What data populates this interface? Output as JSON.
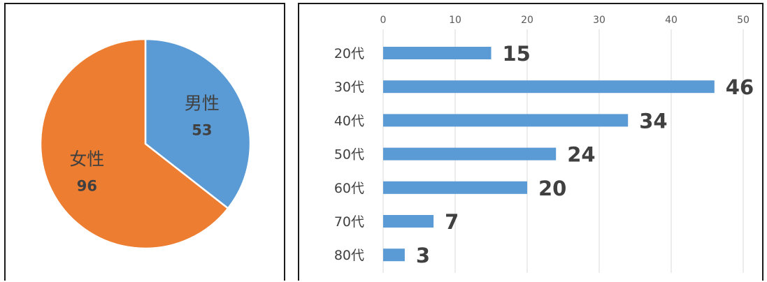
{
  "chart_data": [
    {
      "type": "pie",
      "labels": [
        "男性",
        "女性"
      ],
      "values": [
        53,
        96
      ],
      "colors": [
        "#5b9bd5",
        "#ed7d31"
      ],
      "start_angle_deg": 0,
      "direction": "clockwise",
      "legend": "none"
    },
    {
      "type": "bar",
      "orientation": "horizontal",
      "categories": [
        "20代",
        "30代",
        "40代",
        "50代",
        "60代",
        "70代",
        "80代"
      ],
      "values": [
        15,
        46,
        34,
        24,
        20,
        7,
        3
      ],
      "xlim": [
        0,
        50
      ],
      "xticks": [
        0,
        10,
        20,
        30,
        40,
        50
      ],
      "x_axis_position": "top",
      "grid": true,
      "bar_color": "#5b9bd5",
      "legend": "none"
    }
  ]
}
